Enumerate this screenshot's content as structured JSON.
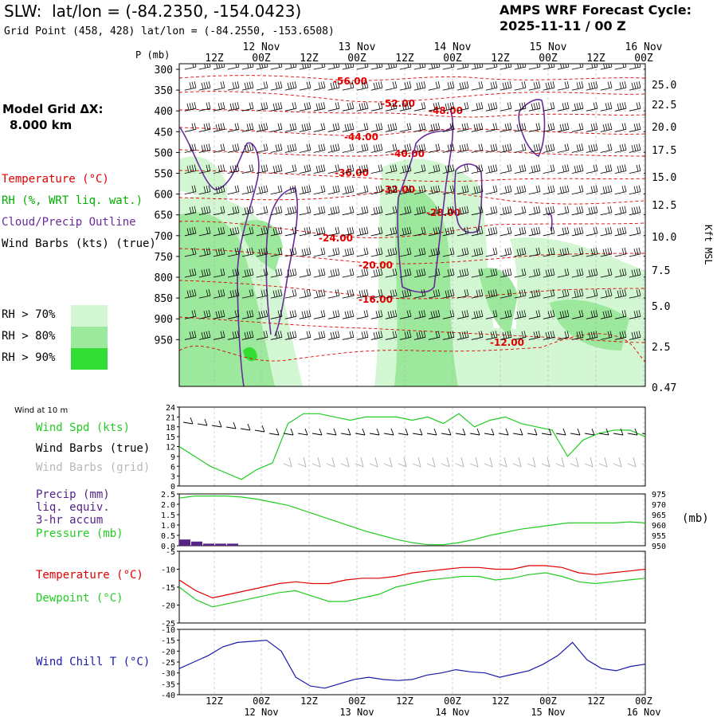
{
  "header": {
    "station": "SLW:",
    "latlon": "lat/lon = (-84.2350, -154.0423)",
    "gridpoint": "Grid Point (458, 428) lat/lon = (-84.2550, -153.6508)",
    "cycle_line1": "AMPS WRF Forecast Cycle:",
    "cycle_line2": "2025-11-11 / 00  Z"
  },
  "model_grid": {
    "label": "Model Grid ΔX:",
    "value": "8.000 km"
  },
  "legend_left": {
    "temperature": "Temperature (°C)",
    "rh": "RH (%, WRT liq. wat.)",
    "cloud": "Cloud/Precip Outline",
    "wind": "Wind Barbs (kts) (true)",
    "rh70": "RH > 70%",
    "rh80": "RH > 80%",
    "rh90": "RH > 90%"
  },
  "colors": {
    "temperature": "#e00000",
    "rh_text": "#00b000",
    "cloud": "#6a2a9a",
    "rh70": "#d2f7d2",
    "rh80": "#9ce89c",
    "rh90": "#33dd33",
    "wind_spd": "#22cc22",
    "barb_grid": "#b0b0b0",
    "pressure": "#22cc22",
    "precip": "#552288",
    "dewpoint": "#22cc22",
    "windchill": "#1a1aaa",
    "grid": "#b0b0b0"
  },
  "time_axis": {
    "top_dates": [
      "12 Nov",
      "13 Nov",
      "14 Nov",
      "15 Nov",
      "16 Nov"
    ],
    "top_ticks": [
      "12Z",
      "00Z",
      "12Z",
      "00Z",
      "12Z",
      "00Z",
      "12Z",
      "00Z",
      "12Z",
      "00Z"
    ],
    "bottom_ticks": [
      "12Z",
      "00Z",
      "12Z",
      "00Z",
      "12Z",
      "00Z",
      "12Z",
      "00Z",
      "12Z",
      "00Z"
    ],
    "bottom_dates": [
      "12 Nov",
      "13 Nov",
      "14 Nov",
      "15 Nov",
      "16 Nov"
    ]
  },
  "chart_data": [
    {
      "type": "heatmap",
      "panel": "cross-section",
      "ylabel": "P (mb)",
      "pressure_levels": [
        "300",
        "350",
        "400",
        "450",
        "500",
        "550",
        "600",
        "650",
        "700",
        "750",
        "800",
        "850",
        "900",
        "950"
      ],
      "right_axis_label": "Kft MSL",
      "kft_ticks": [
        "25.0",
        "22.5",
        "20.0",
        "17.5",
        "15.0",
        "12.5",
        "10.0",
        "7.5",
        "5.0",
        "2.5",
        "0.47"
      ],
      "temperature_labels": [
        "-56.00",
        "-52.00",
        "-48.00",
        "-44.00",
        "-40.00",
        "-36.00",
        "-32.00",
        "-28.00",
        "-24.00",
        "-20.00",
        "-16.00",
        "-12.00"
      ]
    },
    {
      "type": "line",
      "panel": "wind",
      "title": "Wind at 10 m",
      "series": [
        {
          "name": "Wind Spd (kts)",
          "values": [
            12,
            9,
            6,
            4,
            2,
            5,
            7,
            19,
            22,
            22,
            21,
            20,
            21,
            21,
            21,
            20,
            21,
            19,
            22,
            18,
            20,
            21,
            19,
            18,
            17,
            9,
            14,
            16,
            17,
            17,
            15
          ]
        },
        {
          "name": "Wind Barbs (true)",
          "values": []
        },
        {
          "name": "Wind Barbs (grid)",
          "values": []
        }
      ],
      "yticks": [
        "0",
        "3",
        "6",
        "9",
        "12",
        "15",
        "18",
        "21",
        "24"
      ],
      "ylim": [
        0,
        24
      ]
    },
    {
      "type": "bar",
      "panel": "precip-pressure",
      "left_labels": [
        "Precip (mm)",
        "liq. equiv.",
        "3-hr accum"
      ],
      "precip_values": [
        0.3,
        0.2,
        0.1,
        0.1,
        0.1
      ],
      "precip_yticks": [
        "0.0",
        "0.5",
        "1.0",
        "1.5",
        "2.0",
        "2.5"
      ],
      "pressure_name": "Pressure (mb)",
      "pressure_values": [
        973,
        974,
        974,
        974,
        973.5,
        972.5,
        971,
        969.5,
        967,
        964.5,
        962,
        959.5,
        957,
        955,
        953,
        951.5,
        950.5,
        950.5,
        951.5,
        953,
        955,
        956.5,
        958,
        959,
        960,
        961,
        961,
        961,
        961,
        961.5,
        961
      ],
      "pressure_yticks": [
        "950",
        "955",
        "960",
        "965",
        "970",
        "975"
      ],
      "pressure_unit": "(mb)"
    },
    {
      "type": "line",
      "panel": "temperature",
      "series": [
        {
          "name": "Temperature (°C)",
          "values": [
            -13,
            -16,
            -18,
            -17,
            -16,
            -15,
            -14,
            -13.5,
            -14,
            -14,
            -13,
            -12.5,
            -12.5,
            -12,
            -11,
            -10.5,
            -10,
            -9.5,
            -9.5,
            -10,
            -10,
            -9,
            -9,
            -9.5,
            -11,
            -11.5,
            -11,
            -10.5,
            -10
          ]
        },
        {
          "name": "Dewpoint (°C)",
          "values": [
            -15,
            -18.5,
            -20.5,
            -19.5,
            -18.5,
            -17.5,
            -16.5,
            -16,
            -17.5,
            -19,
            -19,
            -18,
            -17,
            -15,
            -14,
            -13,
            -12.5,
            -12,
            -12,
            -13,
            -12.5,
            -11.5,
            -11,
            -12,
            -13.5,
            -14,
            -13.5,
            -13,
            -12.5
          ]
        }
      ],
      "yticks": [
        "-5",
        "-10",
        "-15",
        "-20",
        "-25"
      ],
      "ylim": [
        -25,
        -5
      ]
    },
    {
      "type": "line",
      "panel": "windchill",
      "series": [
        {
          "name": "Wind Chill T (°C)",
          "values": [
            -28,
            -25,
            -22,
            -18,
            -16,
            -15.5,
            -15,
            -20,
            -32,
            -36,
            -37,
            -35,
            -33,
            -32,
            -33,
            -33.5,
            -33,
            -31,
            -30,
            -28.5,
            -29.5,
            -30,
            -32,
            -30.5,
            -29,
            -26,
            -22,
            -16,
            -24,
            -28,
            -29,
            -27,
            -26
          ]
        }
      ],
      "yticks": [
        "-10",
        "-15",
        "-20",
        "-25",
        "-30",
        "-35",
        "-40"
      ],
      "ylim": [
        -40,
        -10
      ]
    }
  ],
  "lower_labels": {
    "wind_title": "Wind at 10 m",
    "wind_spd": "Wind Spd (kts)",
    "barbs_true": "Wind Barbs (true)",
    "barbs_grid": "Wind Barbs (grid)",
    "precip1": "Precip (mm)",
    "precip2": "liq. equiv.",
    "precip3": "3-hr accum",
    "pressure": "Pressure (mb)",
    "temperature": "Temperature (°C)",
    "dewpoint": "Dewpoint (°C)",
    "windchill": "Wind Chill T (°C)"
  }
}
